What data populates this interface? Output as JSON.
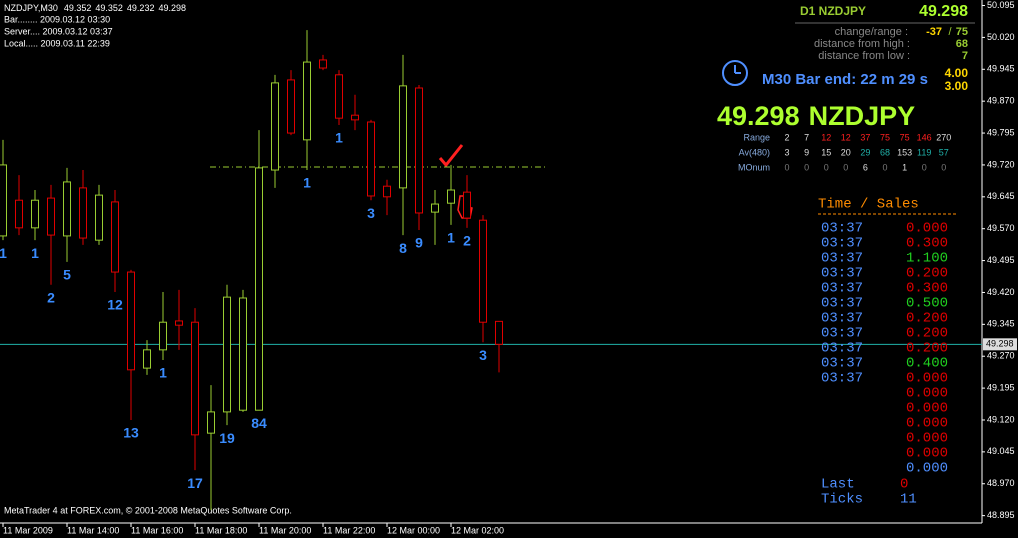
{
  "header": {
    "symbol_tf": "NZDJPY,M30",
    "bar": "Bar........ 2009.03.12 03:30",
    "server": "Server.... 2009.03.12 03:37",
    "local": "Local..... 2009.03.11 22:39"
  },
  "footer": "MetaTrader 4 at FOREX.com, © 2001-2008 MetaQuotes Software Corp.",
  "chart_data": {
    "type": "candlestick",
    "categories": [
      "11 Mar 2009",
      null,
      null,
      null,
      "11 Mar 14:00",
      null,
      null,
      null,
      "11 Mar 16:00",
      null,
      null,
      null,
      "11 Mar 18:00",
      null,
      null,
      null,
      "11 Mar 20:00",
      null,
      null,
      null,
      "11 Mar 22:00",
      null,
      null,
      null,
      "12 Mar 00:00",
      null,
      null,
      null,
      "12 Mar 02:00",
      null,
      null,
      null
    ],
    "open": [
      49.553,
      49.637,
      49.572,
      49.642,
      49.553,
      49.666,
      49.543,
      49.633,
      49.468,
      49.242,
      49.285,
      49.353,
      49.35,
      49.089,
      49.139,
      49.143,
      49.143,
      49.708,
      49.92,
      49.779,
      49.967,
      49.932,
      49.837,
      49.821,
      49.67,
      49.666,
      49.901,
      49.609,
      49.63,
      49.656,
      49.59,
      49.352
    ],
    "high": [
      49.779,
      49.696,
      49.661,
      49.673,
      49.713,
      49.708,
      49.673,
      49.661,
      49.473,
      49.308,
      49.421,
      49.426,
      49.383,
      49.202,
      49.438,
      49.426,
      49.802,
      49.932,
      49.943,
      50.037,
      49.979,
      49.943,
      49.885,
      49.826,
      49.685,
      49.979,
      49.908,
      49.661,
      49.72,
      49.696,
      49.602,
      49.352
    ],
    "low": [
      49.543,
      49.555,
      49.543,
      49.438,
      49.492,
      49.532,
      49.532,
      49.421,
      49.12,
      49.226,
      49.261,
      49.285,
      49.002,
      48.908,
      49.108,
      49.139,
      49.143,
      49.666,
      49.79,
      49.708,
      49.943,
      49.814,
      49.802,
      49.637,
      49.602,
      49.555,
      49.567,
      49.532,
      49.579,
      49.572,
      49.303,
      49.232
    ],
    "close": [
      49.72,
      49.572,
      49.637,
      49.555,
      49.68,
      49.548,
      49.649,
      49.468,
      49.238,
      49.285,
      49.35,
      49.343,
      49.085,
      49.139,
      49.409,
      49.407,
      49.713,
      49.913,
      49.795,
      49.962,
      49.948,
      49.83,
      49.826,
      49.647,
      49.645,
      49.906,
      49.607,
      49.628,
      49.661,
      49.595,
      49.35,
      49.298
    ],
    "counts": [
      1,
      null,
      1,
      2,
      5,
      null,
      null,
      12,
      13,
      null,
      1,
      null,
      17,
      null,
      19,
      null,
      84,
      null,
      null,
      1,
      null,
      1,
      null,
      3,
      null,
      8,
      9,
      null,
      1,
      2,
      3,
      null
    ],
    "up_color": "#9acd32",
    "down_color": "#e00000",
    "count_color": "#3a8cff",
    "current_price": 49.298,
    "current_price_color": "#20b2aa",
    "level": 49.715,
    "level_color": "#9acd32",
    "ylim": [
      48.88,
      50.108
    ],
    "yticks": [
      50.095,
      {
        "value": 50.02,
        "label": "50.020"
      },
      49.945,
      {
        "value": 49.87,
        "label": "49.870"
      },
      49.795,
      {
        "value": 49.72,
        "label": "49.720"
      },
      49.645,
      {
        "value": 49.57,
        "label": "49.570"
      },
      49.495,
      {
        "value": 49.42,
        "label": "49.420"
      },
      49.345,
      {
        "value": 49.27,
        "label": "49.270"
      },
      49.195,
      {
        "value": 49.12,
        "label": "49.120"
      },
      49.045,
      {
        "value": 48.97,
        "label": "48.970"
      },
      48.895
    ],
    "grid": false
  },
  "info": {
    "title": "D1 NZDJPY",
    "symbol": "NZDJPY",
    "change_range_label": "change/range :",
    "change": -37,
    "separator": "/",
    "range": 75,
    "distance_high_label": "distance from high :",
    "distance_high": 68,
    "distance_low_label": "distance from low :",
    "distance_low": 7,
    "bar_end": "M30 Bar end: 22 m 29 s",
    "spread": [
      "4.00",
      "3.00"
    ]
  },
  "stats": [
    {
      "label": "Range",
      "values": [
        2,
        7,
        12,
        12,
        37,
        75,
        75,
        146,
        270
      ],
      "colors": [
        "#dddddd",
        "#dddddd",
        "#ff2020",
        "#ff2020",
        "#ff2020",
        "#ff2020",
        "#ff2020",
        "#ff2020",
        "#dddddd"
      ]
    },
    {
      "label": "Av(480)",
      "values": [
        3,
        9,
        15,
        20,
        29,
        68,
        153,
        119,
        57
      ],
      "colors": [
        "#dddddd",
        "#dddddd",
        "#dddddd",
        "#dddddd",
        "#20b2aa",
        "#20b2aa",
        "#dddddd",
        "#20b2aa",
        "#20b2aa"
      ]
    },
    {
      "label": "MOnum",
      "values": [
        0,
        0,
        0,
        0,
        6,
        0,
        1,
        0,
        0
      ],
      "colors": [
        "#777777",
        "#777777",
        "#777777",
        "#777777",
        "#dddddd",
        "#777777",
        "#dddddd",
        "#777777",
        "#777777"
      ]
    }
  ],
  "time_sales": {
    "title": "Time / Sales",
    "times": [
      "03:37",
      "03:37",
      "03:37",
      "03:37",
      "03:37",
      "03:37",
      "03:37",
      "03:37",
      "03:37",
      "03:37",
      "03:37"
    ],
    "prices": [
      "0.000",
      "0.300",
      "1.100",
      "0.200",
      "0.300",
      "0.500",
      "0.200",
      "0.200",
      "0.200",
      "0.400",
      "0.000",
      "0.000",
      "0.000",
      "0.000",
      "0.000",
      "0.000",
      "0.000"
    ],
    "price_colors": [
      "#e00000",
      "#e00000",
      "#20d020",
      "#e00000",
      "#e00000",
      "#20d020",
      "#e00000",
      "#e00000",
      "#e00000",
      "#20d020",
      "#e00000",
      "#e00000",
      "#e00000",
      "#e00000",
      "#e00000",
      "#e00000",
      "#4f8fff"
    ],
    "last_label": "Last",
    "last": 0,
    "ticks_label": "Ticks",
    "ticks": 11
  }
}
